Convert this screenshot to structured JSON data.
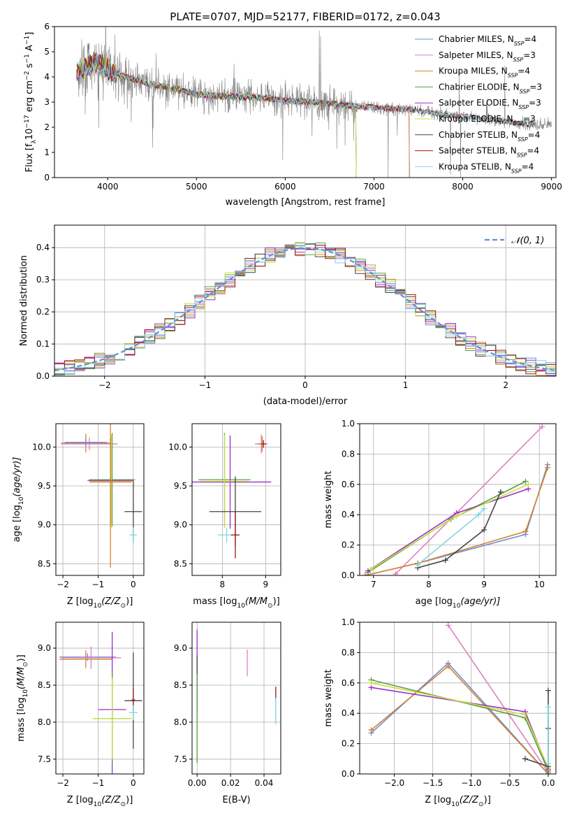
{
  "figure": {
    "title": "PLATE=0707, MJD=52177, FIBERID=0172, z=0.043"
  },
  "colors": {
    "chab_miles": "#6b8dd6",
    "salp_miles": "#e07fbf",
    "krou_miles": "#d4822e",
    "chab_elodie": "#5a9e4b",
    "salp_elodie": "#9b2fc9",
    "krou_elodie": "#c8e03c",
    "chab_stelib": "#454545",
    "salp_stelib": "#a31515",
    "krou_stelib": "#7fd6e0",
    "data_gray": "#808080",
    "normal_curve": "#5f8fd6",
    "grid": "#b0b0b0"
  },
  "chart_data": [
    {
      "id": "spectrum",
      "type": "line",
      "xlabel": "wavelength [Angstrom, rest frame]",
      "ylabel": "Flux [f",
      "ylabel_sub": "λ",
      "ylabel_rest": "10",
      "ylabel_exp1": "−17",
      "ylabel_mid": " erg cm",
      "ylabel_exp2": "−2",
      "ylabel_s": " s",
      "ylabel_exp3": "−1",
      "ylabel_A": " A",
      "ylabel_exp4": "−1",
      "ylabel_end": "]",
      "xlim": [
        3400,
        9050
      ],
      "ylim": [
        0,
        6
      ],
      "xticks": [
        4000,
        5000,
        6000,
        7000,
        8000,
        9000
      ],
      "yticks": [
        0,
        1,
        2,
        3,
        4,
        5,
        6
      ],
      "grid": false,
      "legend_position": "top-right",
      "legend": [
        {
          "label": "Chabrier MILES, N",
          "sub": "SSP",
          "suffix": "=4",
          "color_key": "chab_miles"
        },
        {
          "label": "Salpeter MILES, N",
          "sub": "SSP",
          "suffix": "=3",
          "color_key": "salp_miles"
        },
        {
          "label": "Kroupa MILES, N",
          "sub": "SSP",
          "suffix": "=4",
          "color_key": "krou_miles"
        },
        {
          "label": "Chabrier ELODIE, N",
          "sub": "SSP",
          "suffix": "=3",
          "color_key": "chab_elodie"
        },
        {
          "label": "Salpeter ELODIE, N",
          "sub": "SSP",
          "suffix": "=3",
          "color_key": "salp_elodie"
        },
        {
          "label": "Kroupa ELODIE, N",
          "sub": "SSP",
          "suffix": "=3",
          "color_key": "krou_elodie"
        },
        {
          "label": "Chabrier STELIB, N",
          "sub": "SSP",
          "suffix": "=4",
          "color_key": "chab_stelib"
        },
        {
          "label": "Salpeter STELIB, N",
          "sub": "SSP",
          "suffix": "=4",
          "color_key": "salp_stelib"
        },
        {
          "label": "Kroupa STELIB, N",
          "sub": "SSP",
          "suffix": "=4",
          "color_key": "krou_stelib"
        }
      ],
      "data_range": [
        3650,
        9000
      ],
      "model_continuum": {
        "x": [
          3650,
          3750,
          3850,
          4000,
          4200,
          4500,
          4800,
          5000,
          5200,
          5500,
          5800,
          6000,
          6300,
          6600,
          6900,
          7200,
          7450,
          7800,
          8200,
          8500,
          8800
        ],
        "y": [
          4.2,
          4.4,
          4.6,
          4.3,
          4.0,
          3.7,
          3.5,
          3.3,
          3.25,
          3.2,
          3.15,
          3.05,
          3.0,
          2.9,
          2.8,
          2.75,
          2.7,
          2.5,
          2.35,
          2.2,
          2.1
        ]
      },
      "miles_cutoff": 7400,
      "elodie_cutoff": 6800
    },
    {
      "id": "residual_histogram",
      "type": "step",
      "xlabel": "(data-model)/error",
      "ylabel": "Normed distribution",
      "xlim": [
        -2.5,
        2.5
      ],
      "ylim": [
        0,
        0.47
      ],
      "xticks": [
        -2,
        -1,
        0,
        1,
        2
      ],
      "yticks": [
        0.0,
        0.1,
        0.2,
        0.3,
        0.4
      ],
      "grid": true,
      "legend_position": "top-right",
      "legend_label": "𝒩(0, 1)",
      "bin_width": 0.1,
      "bin_start": -2.5,
      "base_distribution": "normal(0,1)"
    },
    {
      "id": "age_vs_Z",
      "type": "errorbar",
      "xlabel": "Z [log",
      "xlabel_sub": "10",
      "xlabel_rest": "(Z/Z",
      "xlabel_sym": "⊙",
      "xlabel_end": ")]",
      "ylabel": "age  [log",
      "ylabel_sub": "10",
      "ylabel_rest": "(age/yr)]",
      "xlim": [
        -2.2,
        0.3
      ],
      "ylim": [
        8.35,
        10.3
      ],
      "xticks": [
        -2,
        -1,
        0
      ],
      "yticks": [
        8.5,
        9.0,
        9.5,
        10.0
      ],
      "grid": true,
      "points": [
        {
          "color_key": "krou_miles",
          "x": -1.35,
          "xerr": 0.7,
          "y": 10.05,
          "yerr": 0.12
        },
        {
          "color_key": "salp_miles",
          "x": -1.25,
          "xerr": 0.8,
          "y": 10.04,
          "yerr": 0.08
        },
        {
          "color_key": "chab_miles",
          "x": -1.35,
          "xerr": 0.6,
          "y": 10.06,
          "yerr": 0.05
        },
        {
          "color_key": "chab_elodie",
          "x": -0.6,
          "xerr": 0.65,
          "y": 9.58,
          "yerr": 0.6
        },
        {
          "color_key": "krou_elodie",
          "x": -0.62,
          "xerr": 0.62,
          "y": 9.56,
          "yerr": 0.6
        },
        {
          "color_key": "salp_elodie",
          "x": -0.65,
          "xerr": 0.65,
          "y": 9.57,
          "yerr": 0.55
        },
        {
          "color_key": "krou_miles",
          "x": -0.65,
          "xerr": 0.6,
          "y": 9.55,
          "yerr": 1.1
        },
        {
          "color_key": "chab_stelib",
          "x": 0.0,
          "xerr": 0.25,
          "y": 9.17,
          "yerr": 0.4
        },
        {
          "color_key": "krou_stelib",
          "x": 0.0,
          "xerr": 0.1,
          "y": 8.87,
          "yerr": 0.1
        }
      ]
    },
    {
      "id": "age_vs_mass",
      "type": "errorbar",
      "xlabel": "mass [log",
      "xlabel_sub": "10",
      "xlabel_rest": "(M/M",
      "xlabel_sym": "⊙",
      "xlabel_end": ")]",
      "ylabel": "",
      "xlim": [
        7.3,
        9.35
      ],
      "ylim": [
        8.35,
        10.3
      ],
      "xticks": [
        8,
        9
      ],
      "yticks": [
        8.5,
        9.0,
        9.5,
        10.0
      ],
      "grid": true,
      "points": [
        {
          "color_key": "salp_miles",
          "x": 8.9,
          "xerr": 0.15,
          "y": 10.04,
          "yerr": 0.12
        },
        {
          "color_key": "krou_miles",
          "x": 8.92,
          "xerr": 0.1,
          "y": 10.04,
          "yerr": 0.1
        },
        {
          "color_key": "salp_stelib",
          "x": 8.95,
          "xerr": 0.05,
          "y": 10.04,
          "yerr": 0.05
        },
        {
          "color_key": "chab_elodie",
          "x": 8.05,
          "xerr": 0.6,
          "y": 9.58,
          "yerr": 0.6
        },
        {
          "color_key": "salp_elodie",
          "x": 8.18,
          "xerr": 0.95,
          "y": 9.55,
          "yerr": 0.6
        },
        {
          "color_key": "krou_elodie",
          "x": 8.05,
          "xerr": 0.55,
          "y": 9.56,
          "yerr": 0.6
        },
        {
          "color_key": "chab_stelib",
          "x": 8.3,
          "xerr": 0.6,
          "y": 9.17,
          "yerr": 0.45
        },
        {
          "color_key": "krou_stelib",
          "x": 8.1,
          "xerr": 0.2,
          "y": 8.87,
          "yerr": 0.1
        },
        {
          "color_key": "salp_stelib",
          "x": 8.3,
          "xerr": 0.1,
          "y": 8.87,
          "yerr": 0.3
        }
      ]
    },
    {
      "id": "massweight_vs_age",
      "type": "line",
      "xlabel": "age  [log",
      "xlabel_sub": "10",
      "xlabel_rest": "(age/yr)]",
      "ylabel": "mass weight",
      "xlim": [
        6.75,
        10.3
      ],
      "ylim": [
        0,
        1.0
      ],
      "xticks": [
        7,
        8,
        9,
        10
      ],
      "yticks": [
        0.0,
        0.2,
        0.4,
        0.6,
        0.8,
        1.0
      ],
      "grid": true,
      "series": [
        {
          "color_key": "salp_miles",
          "x": [
            7.4,
            8.5,
            10.05
          ],
          "y": [
            0.01,
            0.41,
            0.98
          ]
        },
        {
          "color_key": "chab_miles",
          "x": [
            6.85,
            7.8,
            9.75,
            10.15
          ],
          "y": [
            0.0,
            0.08,
            0.27,
            0.73
          ]
        },
        {
          "color_key": "krou_miles",
          "x": [
            6.85,
            7.8,
            9.75,
            10.15
          ],
          "y": [
            0.0,
            0.08,
            0.29,
            0.71
          ]
        },
        {
          "color_key": "chab_elodie",
          "x": [
            6.9,
            8.4,
            9.75
          ],
          "y": [
            0.02,
            0.37,
            0.62
          ]
        },
        {
          "color_key": "salp_elodie",
          "x": [
            6.9,
            8.5,
            9.8
          ],
          "y": [
            0.03,
            0.41,
            0.57
          ]
        },
        {
          "color_key": "krou_elodie",
          "x": [
            6.95,
            8.5,
            9.8
          ],
          "y": [
            0.04,
            0.39,
            0.6
          ]
        },
        {
          "color_key": "chab_stelib",
          "x": [
            7.8,
            8.3,
            9.0,
            9.3
          ],
          "y": [
            0.05,
            0.1,
            0.3,
            0.55
          ]
        },
        {
          "color_key": "krou_stelib",
          "x": [
            7.8,
            8.9,
            9.0
          ],
          "y": [
            0.07,
            0.4,
            0.44
          ]
        }
      ]
    },
    {
      "id": "mass_vs_Z",
      "type": "errorbar",
      "xlabel": "Z [log",
      "xlabel_sub": "10",
      "xlabel_rest": "(Z/Z",
      "xlabel_sym": "⊙",
      "xlabel_end": ")]",
      "ylabel": "mass [log",
      "ylabel_sub": "10",
      "ylabel_rest": "(M/M",
      "ylabel_sym": "⊙",
      "ylabel_end": ")]",
      "xlim": [
        -2.2,
        0.3
      ],
      "ylim": [
        7.3,
        9.35
      ],
      "xticks": [
        -2,
        -1,
        0
      ],
      "yticks": [
        7.5,
        8.0,
        8.5,
        9.0
      ],
      "grid": true,
      "points": [
        {
          "color_key": "chab_miles",
          "x": -1.3,
          "xerr": 0.8,
          "y": 8.88,
          "yerr": 0.05
        },
        {
          "color_key": "krou_miles",
          "x": -1.35,
          "xerr": 0.75,
          "y": 8.85,
          "yerr": 0.12
        },
        {
          "color_key": "salp_miles",
          "x": -1.2,
          "xerr": 0.85,
          "y": 8.87,
          "yerr": 0.15
        },
        {
          "color_key": "salp_elodie",
          "x": -0.6,
          "xerr": 0.4,
          "y": 8.17,
          "yerr": 1.05
        },
        {
          "color_key": "chab_elodie",
          "x": -0.6,
          "xerr": 0.55,
          "y": 8.05,
          "yerr": 0.62
        },
        {
          "color_key": "krou_elodie",
          "x": -0.6,
          "xerr": 0.55,
          "y": 8.05,
          "yerr": 0.55
        },
        {
          "color_key": "chab_stelib",
          "x": 0.0,
          "xerr": 0.25,
          "y": 8.29,
          "yerr": 0.65
        },
        {
          "color_key": "salp_stelib",
          "x": 0.0,
          "xerr": 0.05,
          "y": 8.3,
          "yerr": 0.15
        },
        {
          "color_key": "krou_stelib",
          "x": 0.0,
          "xerr": 0.12,
          "y": 8.13,
          "yerr": 0.1
        }
      ]
    },
    {
      "id": "mass_vs_EBV",
      "type": "errorbar",
      "xlabel": "E(B-V)",
      "ylabel": "",
      "xlim": [
        -0.003,
        0.05
      ],
      "ylim": [
        7.3,
        9.35
      ],
      "xticks": [
        0.0,
        0.02,
        0.04
      ],
      "xtick_labels": [
        "0.00",
        "0.02",
        "0.04"
      ],
      "yticks": [
        7.5,
        8.0,
        8.5,
        9.0
      ],
      "grid": true,
      "points": [
        {
          "color_key": "salp_elodie",
          "x": 0.0,
          "y": 8.9,
          "yerr": 0.35
        },
        {
          "color_key": "chab_stelib",
          "x": 0.0,
          "y": 8.5,
          "yerr": 0.4
        },
        {
          "color_key": "krou_elodie",
          "x": 0.0,
          "y": 7.8,
          "yerr": 0.35
        },
        {
          "color_key": "chab_elodie",
          "x": 0.0,
          "y": 8.05,
          "yerr": 0.6
        },
        {
          "color_key": "salp_miles",
          "x": 0.03,
          "y": 8.8,
          "yerr": 0.18
        },
        {
          "color_key": "salp_stelib",
          "x": 0.047,
          "y": 8.38,
          "yerr": 0.1
        },
        {
          "color_key": "krou_stelib",
          "x": 0.047,
          "y": 8.15,
          "yerr": 0.18
        }
      ]
    },
    {
      "id": "massweight_vs_Z",
      "type": "line",
      "xlabel": "Z [log",
      "xlabel_sub": "10",
      "xlabel_rest": "(Z/Z",
      "xlabel_sym": "⊙",
      "xlabel_end": ")]",
      "ylabel": "mass weight",
      "xlim": [
        -2.45,
        0.1
      ],
      "ylim": [
        0,
        1.0
      ],
      "xticks": [
        -2.0,
        -1.5,
        -1.0,
        -0.5,
        0.0
      ],
      "xtick_labels": [
        "−2.0",
        "−1.5",
        "−1.0",
        "−0.5",
        "0.0"
      ],
      "yticks": [
        0.0,
        0.2,
        0.4,
        0.6,
        0.8,
        1.0
      ],
      "grid": true,
      "series": [
        {
          "color_key": "salp_miles",
          "x": [
            -1.3,
            0.0
          ],
          "y": [
            0.98,
            0.01
          ]
        },
        {
          "color_key": "chab_miles",
          "x": [
            -2.3,
            -1.3,
            0.0,
            0.0
          ],
          "y": [
            0.27,
            0.73,
            0.0,
            0.0
          ]
        },
        {
          "color_key": "krou_miles",
          "x": [
            -2.3,
            -1.3,
            0.0
          ],
          "y": [
            0.29,
            0.71,
            0.0
          ]
        },
        {
          "color_key": "chab_elodie",
          "x": [
            -2.3,
            -0.3,
            0.0
          ],
          "y": [
            0.62,
            0.37,
            0.02
          ]
        },
        {
          "color_key": "salp_elodie",
          "x": [
            -2.3,
            -0.3,
            0.0
          ],
          "y": [
            0.57,
            0.41,
            0.03
          ]
        },
        {
          "color_key": "krou_elodie",
          "x": [
            -2.3,
            -0.3,
            0.0
          ],
          "y": [
            0.6,
            0.39,
            0.04
          ]
        },
        {
          "color_key": "chab_stelib",
          "x": [
            -0.3,
            0.0,
            0.0,
            0.0
          ],
          "y": [
            0.1,
            0.05,
            0.3,
            0.55
          ]
        },
        {
          "color_key": "krou_stelib",
          "x": [
            0.0,
            0.0,
            0.0
          ],
          "y": [
            0.07,
            0.4,
            0.44
          ]
        }
      ]
    }
  ]
}
